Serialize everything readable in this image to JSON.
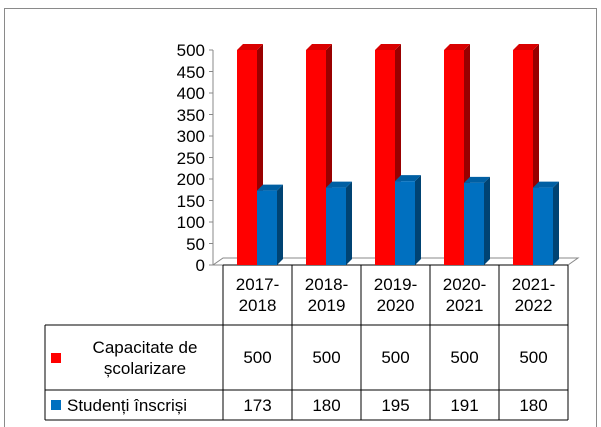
{
  "chart_data": {
    "type": "bar",
    "categories": [
      "2017-2018",
      "2018-2019",
      "2019-2020",
      "2020-2021",
      "2021-2022"
    ],
    "series": [
      {
        "name": "Capacitate de școlarizare",
        "color": "#ff0000",
        "values": [
          500,
          500,
          500,
          500,
          500
        ]
      },
      {
        "name": "Studenți înscriși",
        "color": "#0070c0",
        "values": [
          173,
          180,
          195,
          191,
          180
        ]
      }
    ],
    "ylim": [
      0,
      500
    ],
    "yticks": [
      0,
      50,
      100,
      150,
      200,
      250,
      300,
      350,
      400,
      450,
      500
    ]
  }
}
